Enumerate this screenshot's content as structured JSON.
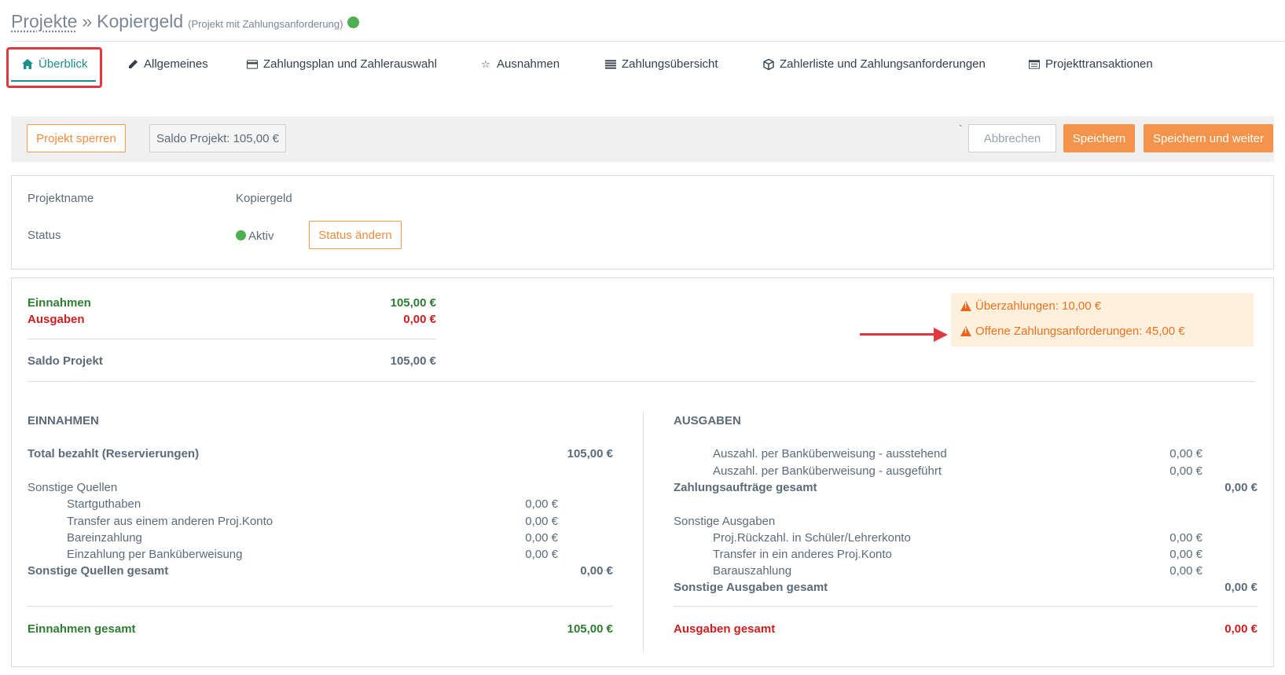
{
  "header": {
    "breadcrumb_root": "Projekte",
    "separator": "»",
    "project_title": "Kopiergeld",
    "project_type": "(Projekt mit Zahlungsanforderung)",
    "status_color": "#4cb050"
  },
  "tabs": [
    {
      "label": "Überblick",
      "icon": "home-icon",
      "active": true
    },
    {
      "label": "Allgemeines",
      "icon": "pencil-icon"
    },
    {
      "label": "Zahlungsplan und Zahlerauswahl",
      "icon": "credit-card-icon"
    },
    {
      "label": "Ausnahmen",
      "icon": "star-icon"
    },
    {
      "label": "Zahlungsübersicht",
      "icon": "list-icon"
    },
    {
      "label": "Zahlerliste und Zahlungsanforderungen",
      "icon": "cube-icon"
    },
    {
      "label": "Projekttransaktionen",
      "icon": "table-icon"
    }
  ],
  "actions": {
    "lock_label": "Projekt sperren",
    "balance_label": "Saldo Projekt: 105,00 €",
    "backtick": "`",
    "cancel_label": "Abbrechen",
    "save_label": "Speichern",
    "save_continue_label": "Speichern und weiter"
  },
  "info": {
    "name_label": "Projektname",
    "name_value": "Kopiergeld",
    "status_label": "Status",
    "status_value": "Aktiv",
    "change_status_label": "Status ändern"
  },
  "summary": {
    "income_label": "Einnahmen",
    "income_value": "105,00 €",
    "expense_label": "Ausgaben",
    "expense_value": "0,00 €",
    "balance_label": "Saldo Projekt",
    "balance_value": "105,00 €"
  },
  "alerts": {
    "overpayments": "Überzahlungen: 10,00 €",
    "open_requests": "Offene Zahlungsanforderungen: 45,00 €"
  },
  "income": {
    "heading": "EINNAHMEN",
    "total_paid_label": "Total bezahlt (Reservierungen)",
    "total_paid_value": "105,00 €",
    "other_sources_label": "Sonstige Quellen",
    "items": [
      {
        "label": "Startguthaben",
        "value": "0,00 €"
      },
      {
        "label": "Transfer aus einem anderen Proj.Konto",
        "value": "0,00 €"
      },
      {
        "label": "Bareinzahlung",
        "value": "0,00 €"
      },
      {
        "label": "Einzahlung per Banküberweisung",
        "value": "0,00 €"
      }
    ],
    "other_total_label": "Sonstige Quellen gesamt",
    "other_total_value": "0,00 €",
    "grand_total_label": "Einnahmen gesamt",
    "grand_total_value": "105,00 €"
  },
  "expenses": {
    "heading": "AUSGABEN",
    "transfer_items": [
      {
        "label": "Auszahl. per Banküberweisung - ausstehend",
        "value": "0,00 €"
      },
      {
        "label": "Auszahl. per Banküberweisung - ausgeführt",
        "value": "0,00 €"
      }
    ],
    "orders_total_label": "Zahlungsaufträge gesamt",
    "orders_total_value": "0,00 €",
    "other_label": "Sonstige Ausgaben",
    "other_items": [
      {
        "label": "Proj.Rückzahl. in Schüler/Lehrerkonto",
        "value": "0,00 €"
      },
      {
        "label": "Transfer in ein anderes Proj.Konto",
        "value": "0,00 €"
      },
      {
        "label": "Barauszahlung",
        "value": "0,00 €"
      }
    ],
    "other_total_label": "Sonstige Ausgaben gesamt",
    "other_total_value": "0,00 €",
    "grand_total_label": "Ausgaben gesamt",
    "grand_total_value": "0,00 €"
  }
}
